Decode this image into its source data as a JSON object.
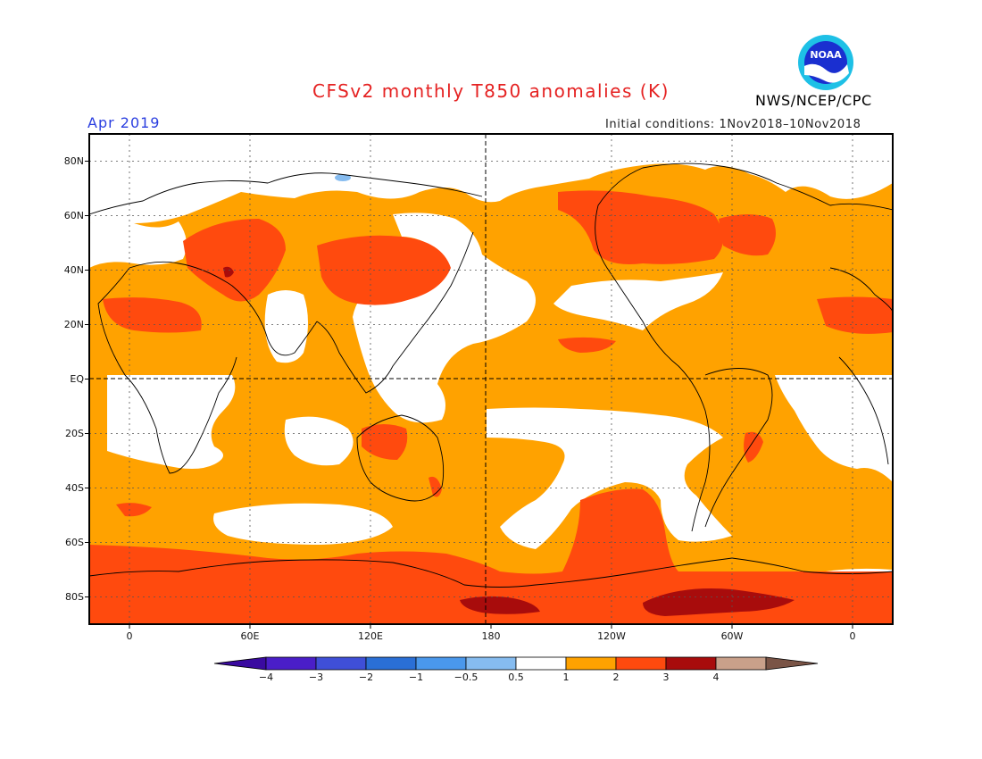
{
  "title": "CFSv2 monthly T850 anomalies (K)",
  "valid_month": "Apr 2019",
  "initial_conditions": "Initial conditions: 1Nov2018–10Nov2018",
  "agency": "NWS/NCEP/CPC",
  "logo_text": "NOAA",
  "map": {
    "lat_labels": [
      {
        "text": "80N",
        "lat": 80
      },
      {
        "text": "60N",
        "lat": 60
      },
      {
        "text": "40N",
        "lat": 40
      },
      {
        "text": "20N",
        "lat": 20
      },
      {
        "text": "EQ",
        "lat": 0
      },
      {
        "text": "20S",
        "lat": -20
      },
      {
        "text": "40S",
        "lat": -40
      },
      {
        "text": "60S",
        "lat": -60
      },
      {
        "text": "80S",
        "lat": -80
      }
    ],
    "lon_labels": [
      {
        "text": "0",
        "lon": 0
      },
      {
        "text": "60E",
        "lon": 60
      },
      {
        "text": "120E",
        "lon": 120
      },
      {
        "text": "180",
        "lon": 180
      },
      {
        "text": "120W",
        "lon": 240
      },
      {
        "text": "60W",
        "lon": 300
      },
      {
        "text": "0",
        "lon": 360
      }
    ],
    "lon_range": [
      -20,
      380
    ],
    "lat_range": [
      -90,
      90
    ]
  },
  "colorbar": {
    "bins": [
      {
        "color": "#4a1ec8"
      },
      {
        "color": "#3f4fd8"
      },
      {
        "color": "#2a6fd6"
      },
      {
        "color": "#4a98ec"
      },
      {
        "color": "#86bcf0"
      },
      {
        "color": "#ffffff"
      },
      {
        "color": "#ffa200"
      },
      {
        "color": "#ff4a0e"
      },
      {
        "color": "#a80c0c"
      },
      {
        "color": "#c9a08a"
      }
    ],
    "low_arrow_color": "#3a0aa0",
    "high_arrow_color": "#7a5446",
    "tick_labels": [
      "−4",
      "−3",
      "−2",
      "−1",
      "−0.5",
      "0.5",
      "1",
      "2",
      "3",
      "4"
    ]
  },
  "colors": {
    "warm_1": "#ffa200",
    "warm_2": "#ff4a0e",
    "warm_3": "#a80c0c",
    "neutral": "#ffffff",
    "cool_1": "#86bcf0",
    "title": "#e52222",
    "month": "#2b3fe0"
  }
}
